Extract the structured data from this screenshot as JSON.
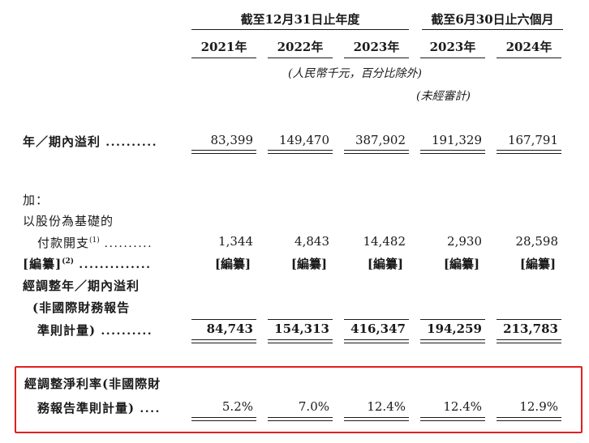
{
  "header": {
    "group_full_year": "截至12月31日止年度",
    "group_six_months": "截至6月30日止六個月",
    "years": [
      "2021年",
      "2022年",
      "2023年",
      "2023年",
      "2024年"
    ],
    "unit_note": "(人民幣千元，百分比除外)",
    "unaudited_note": "(未經審計)"
  },
  "rows": {
    "profit": {
      "label": "年／期內溢利",
      "dots": "..........",
      "values": [
        "83,399",
        "149,470",
        "387,902",
        "191,329",
        "167,791"
      ]
    },
    "add": {
      "label": "加："
    },
    "share_based": {
      "label_line1": "以股份為基礎的",
      "label_line2": "付款開支",
      "note_ref": "(1)",
      "dots": "..........",
      "values": [
        "1,344",
        "4,843",
        "14,482",
        "2,930",
        "28,598"
      ]
    },
    "redacted_row": {
      "label": "[編纂]",
      "note_ref": "(2)",
      "dots": "..............",
      "values": [
        "[編纂]",
        "[編纂]",
        "[編纂]",
        "[編纂]",
        "[編纂]"
      ]
    },
    "adjusted_profit": {
      "label_line1": "經調整年／期內溢利",
      "label_line2": "(非國際財務報告",
      "label_line3": "準則計量)",
      "dots": "..........",
      "values": [
        "84,743",
        "154,313",
        "416,347",
        "194,259",
        "213,783"
      ]
    },
    "adjusted_margin": {
      "label_line1": "經調整淨利率(非國際財",
      "label_line2": "務報告準則計量)",
      "dots": "....",
      "values": [
        "5.2%",
        "7.0%",
        "12.4%",
        "12.4%",
        "12.9%"
      ]
    }
  },
  "colors": {
    "text": "#1a1a1a",
    "highlight_border": "#e02020"
  }
}
